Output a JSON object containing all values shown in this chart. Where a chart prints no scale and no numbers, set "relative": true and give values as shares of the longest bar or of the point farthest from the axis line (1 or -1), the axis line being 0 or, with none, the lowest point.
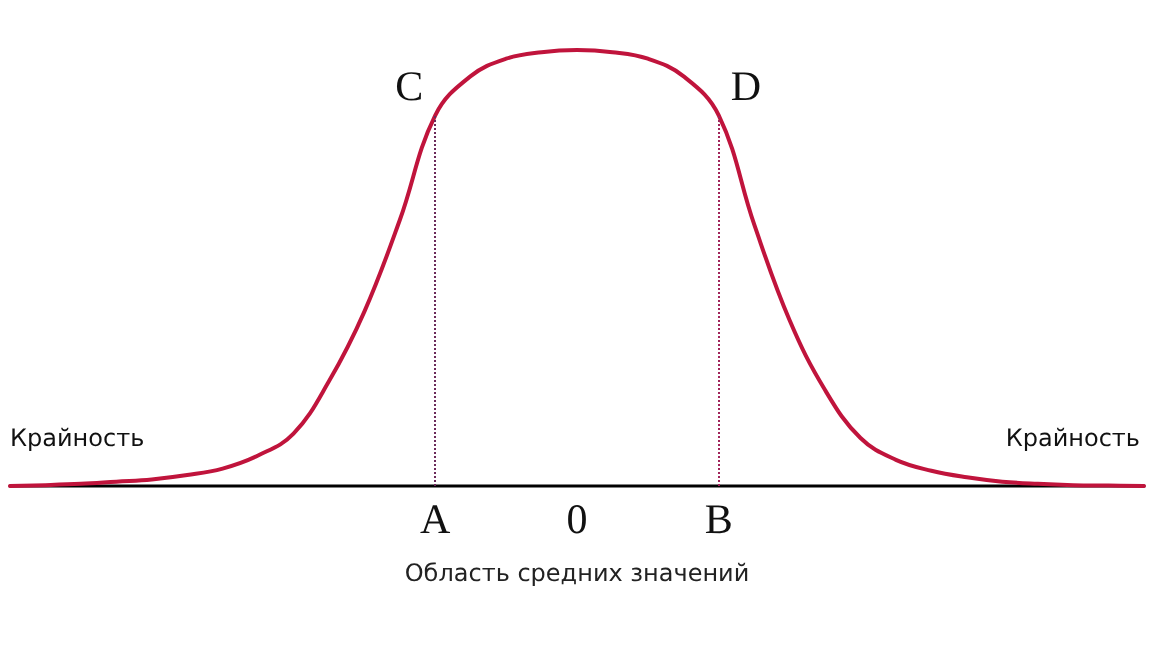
{
  "chart_data": {
    "type": "line",
    "relative": true,
    "xlabel": "Область средних значений",
    "categories": [
      null,
      null,
      null,
      null,
      null,
      null,
      null,
      null,
      null,
      null,
      null,
      null,
      "A",
      null,
      null,
      null,
      "0",
      null,
      null,
      null,
      "B",
      null,
      null,
      null,
      null,
      null,
      null,
      null,
      null,
      null,
      null,
      null,
      null
    ],
    "series": [
      {
        "color": "#c0143c",
        "values": [
          0,
          0.002,
          0.005,
          0.01,
          0.015,
          0.025,
          0.04,
          0.07,
          0.12,
          0.24,
          0.4,
          0.61,
          0.85,
          0.94,
          0.98,
          0.995,
          1,
          0.995,
          0.98,
          0.94,
          0.85,
          0.6,
          0.38,
          0.22,
          0.11,
          0.06,
          0.035,
          0.02,
          0.01,
          0.005,
          0.002,
          0.001,
          0
        ]
      }
    ],
    "ref_lines": [
      {
        "axis": "x",
        "value": "A",
        "color": "#6b2a5a",
        "line_style": "dotted"
      },
      {
        "axis": "x",
        "value": "B",
        "color": "#a0245a",
        "line_style": "dotted"
      }
    ],
    "annotations": [
      {
        "text": "C",
        "x": "A",
        "y": 0.85
      },
      {
        "text": "D",
        "x": "B",
        "y": 0.85
      },
      "Крайность",
      "Крайность"
    ],
    "grid": false,
    "marker": "none",
    "line_style": "solid"
  }
}
